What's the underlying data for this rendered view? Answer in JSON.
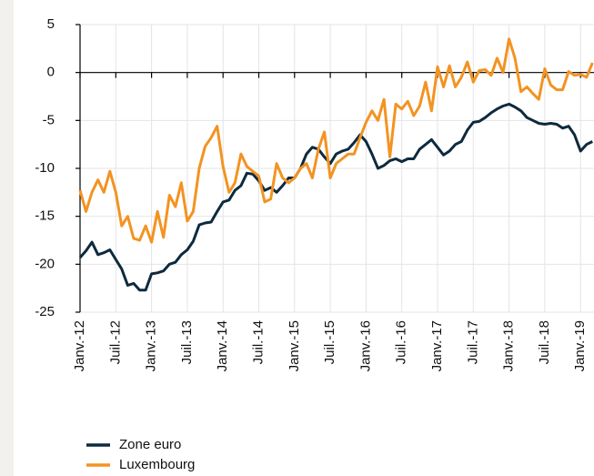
{
  "chart_data": {
    "type": "line",
    "categories": [
      "Janv.-12",
      null,
      null,
      null,
      null,
      null,
      "Juil.-12",
      null,
      null,
      null,
      null,
      null,
      "Janv.-13",
      null,
      null,
      null,
      null,
      null,
      "Juil.-13",
      null,
      null,
      null,
      null,
      null,
      "Janv.-14",
      null,
      null,
      null,
      null,
      null,
      "Juil.-14",
      null,
      null,
      null,
      null,
      null,
      "Janv.-15",
      null,
      null,
      null,
      null,
      null,
      "Juil.-15",
      null,
      null,
      null,
      null,
      null,
      "Janv.-16",
      null,
      null,
      null,
      null,
      null,
      "Juil.-16",
      null,
      null,
      null,
      null,
      null,
      "Janv.-17",
      null,
      null,
      null,
      null,
      null,
      "Juil.-17",
      null,
      null,
      null,
      null,
      null,
      "Janv.-18",
      null,
      null,
      null,
      null,
      null,
      "Juil.-18",
      null,
      null,
      null,
      null,
      null,
      "Janv.-19",
      null,
      null
    ],
    "series": [
      {
        "name": "Zone euro",
        "color": "#0d2a3e",
        "values": [
          -19.3,
          -18.6,
          -17.7,
          -19.0,
          -18.8,
          -18.5,
          -19.5,
          -20.5,
          -22.2,
          -22.0,
          -22.7,
          -22.7,
          -21.0,
          -20.9,
          -20.7,
          -20.0,
          -19.8,
          -19.0,
          -18.5,
          -17.6,
          -15.9,
          -15.7,
          -15.6,
          -14.5,
          -13.5,
          -13.3,
          -12.3,
          -11.8,
          -10.5,
          -10.6,
          -11.3,
          -12.3,
          -12.0,
          -12.5,
          -11.8,
          -11.0,
          -11.0,
          -10.0,
          -8.5,
          -7.8,
          -8.0,
          -8.8,
          -9.5,
          -8.5,
          -8.2,
          -8.0,
          -7.3,
          -6.5,
          -7.2,
          -8.5,
          -10.0,
          -9.7,
          -9.2,
          -9.0,
          -9.3,
          -9.0,
          -9.0,
          -8.0,
          -7.5,
          -7.0,
          -7.8,
          -8.6,
          -8.2,
          -7.5,
          -7.2,
          -6.0,
          -5.2,
          -5.1,
          -4.7,
          -4.2,
          -3.8,
          -3.5,
          -3.3,
          -3.6,
          -4.0,
          -4.7,
          -5.0,
          -5.3,
          -5.4,
          -5.3,
          -5.4,
          -5.8,
          -5.6,
          -6.5,
          -8.2,
          -7.5,
          -7.2
        ]
      },
      {
        "name": "Luxembourg",
        "color": "#f39322",
        "values": [
          -12.3,
          -14.5,
          -12.5,
          -11.2,
          -12.5,
          -10.3,
          -12.5,
          -16.0,
          -15.0,
          -17.3,
          -17.5,
          -16.0,
          -17.7,
          -14.5,
          -17.2,
          -12.8,
          -14.0,
          -11.5,
          -15.5,
          -14.5,
          -10.0,
          -7.7,
          -6.8,
          -5.6,
          -9.8,
          -12.5,
          -11.5,
          -8.5,
          -9.8,
          -10.3,
          -10.8,
          -13.5,
          -13.2,
          -9.5,
          -11.0,
          -11.5,
          -11.0,
          -10.0,
          -9.5,
          -11.0,
          -8.0,
          -6.2,
          -11.0,
          -9.5,
          -9.0,
          -8.5,
          -8.5,
          -6.8,
          -5.2,
          -4.0,
          -5.0,
          -2.8,
          -8.8,
          -3.3,
          -3.8,
          -3.0,
          -4.5,
          -3.5,
          -1.0,
          -4.0,
          0.6,
          -1.5,
          0.7,
          -1.5,
          -0.5,
          1.1,
          -1.0,
          0.2,
          0.3,
          -0.3,
          1.5,
          0.0,
          3.5,
          1.5,
          -2.0,
          -1.5,
          -2.2,
          -2.8,
          0.4,
          -1.3,
          -1.8,
          -1.8,
          0.1,
          -0.3,
          -0.2,
          -0.5,
          1.0
        ]
      }
    ],
    "ylim": [
      -25,
      5
    ],
    "yticks": [
      5,
      0,
      -5,
      -10,
      -15,
      -20,
      -25
    ],
    "grid": true,
    "legend": "bottom-left"
  }
}
